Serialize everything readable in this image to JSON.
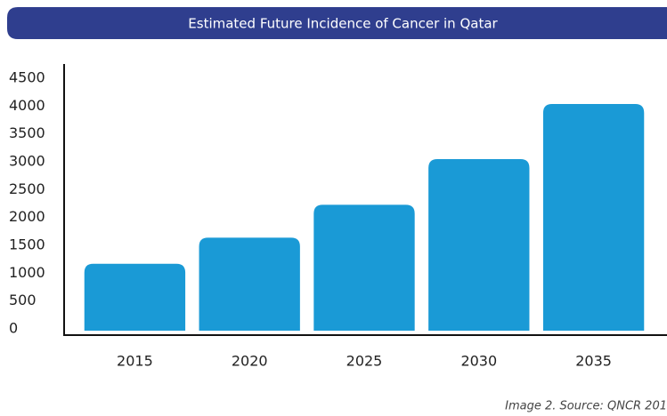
{
  "chart_data": {
    "type": "bar",
    "title": "Estimated Future Incidence of Cancer in Qatar",
    "categories": [
      "2015",
      "2020",
      "2025",
      "2030",
      "2035"
    ],
    "values": [
      1200,
      1670,
      2260,
      3080,
      4070
    ],
    "color": "#1a9ad6",
    "ylim": [
      0,
      4500
    ],
    "yticks": [
      0,
      500,
      1000,
      1500,
      2000,
      2500,
      3000,
      3500,
      4000,
      4500
    ],
    "caption": "Image 2. Source: QNCR 201"
  }
}
